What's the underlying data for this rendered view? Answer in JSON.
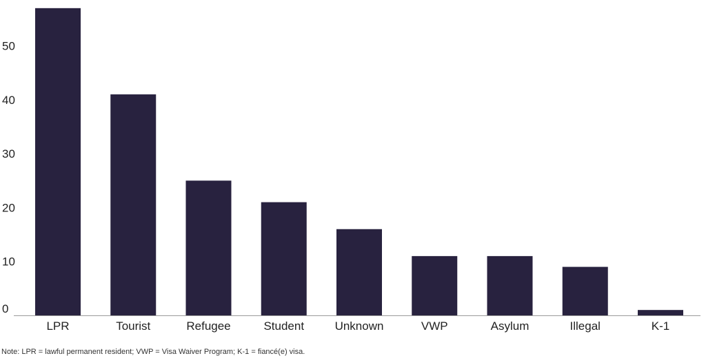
{
  "chart_data": {
    "type": "bar",
    "title": "",
    "xlabel": "",
    "ylabel": "",
    "categories": [
      "LPR",
      "Tourist",
      "Refugee",
      "Student",
      "Unknown",
      "VWP",
      "Asylum",
      "Illegal",
      "K-1"
    ],
    "values": [
      57,
      41,
      25,
      21,
      16,
      11,
      11,
      9,
      1
    ],
    "ylim": [
      0,
      58
    ],
    "yticks": [
      0,
      10,
      20,
      30,
      40,
      50
    ],
    "grid": false,
    "legend": "none",
    "colors": {
      "bar": "#28223f",
      "axis": "#9a9a9a",
      "text": "#222222"
    }
  },
  "note": "Note: LPR = lawful permanent resident; VWP = Visa Waiver Program; K-1 = fiancé(e) visa."
}
